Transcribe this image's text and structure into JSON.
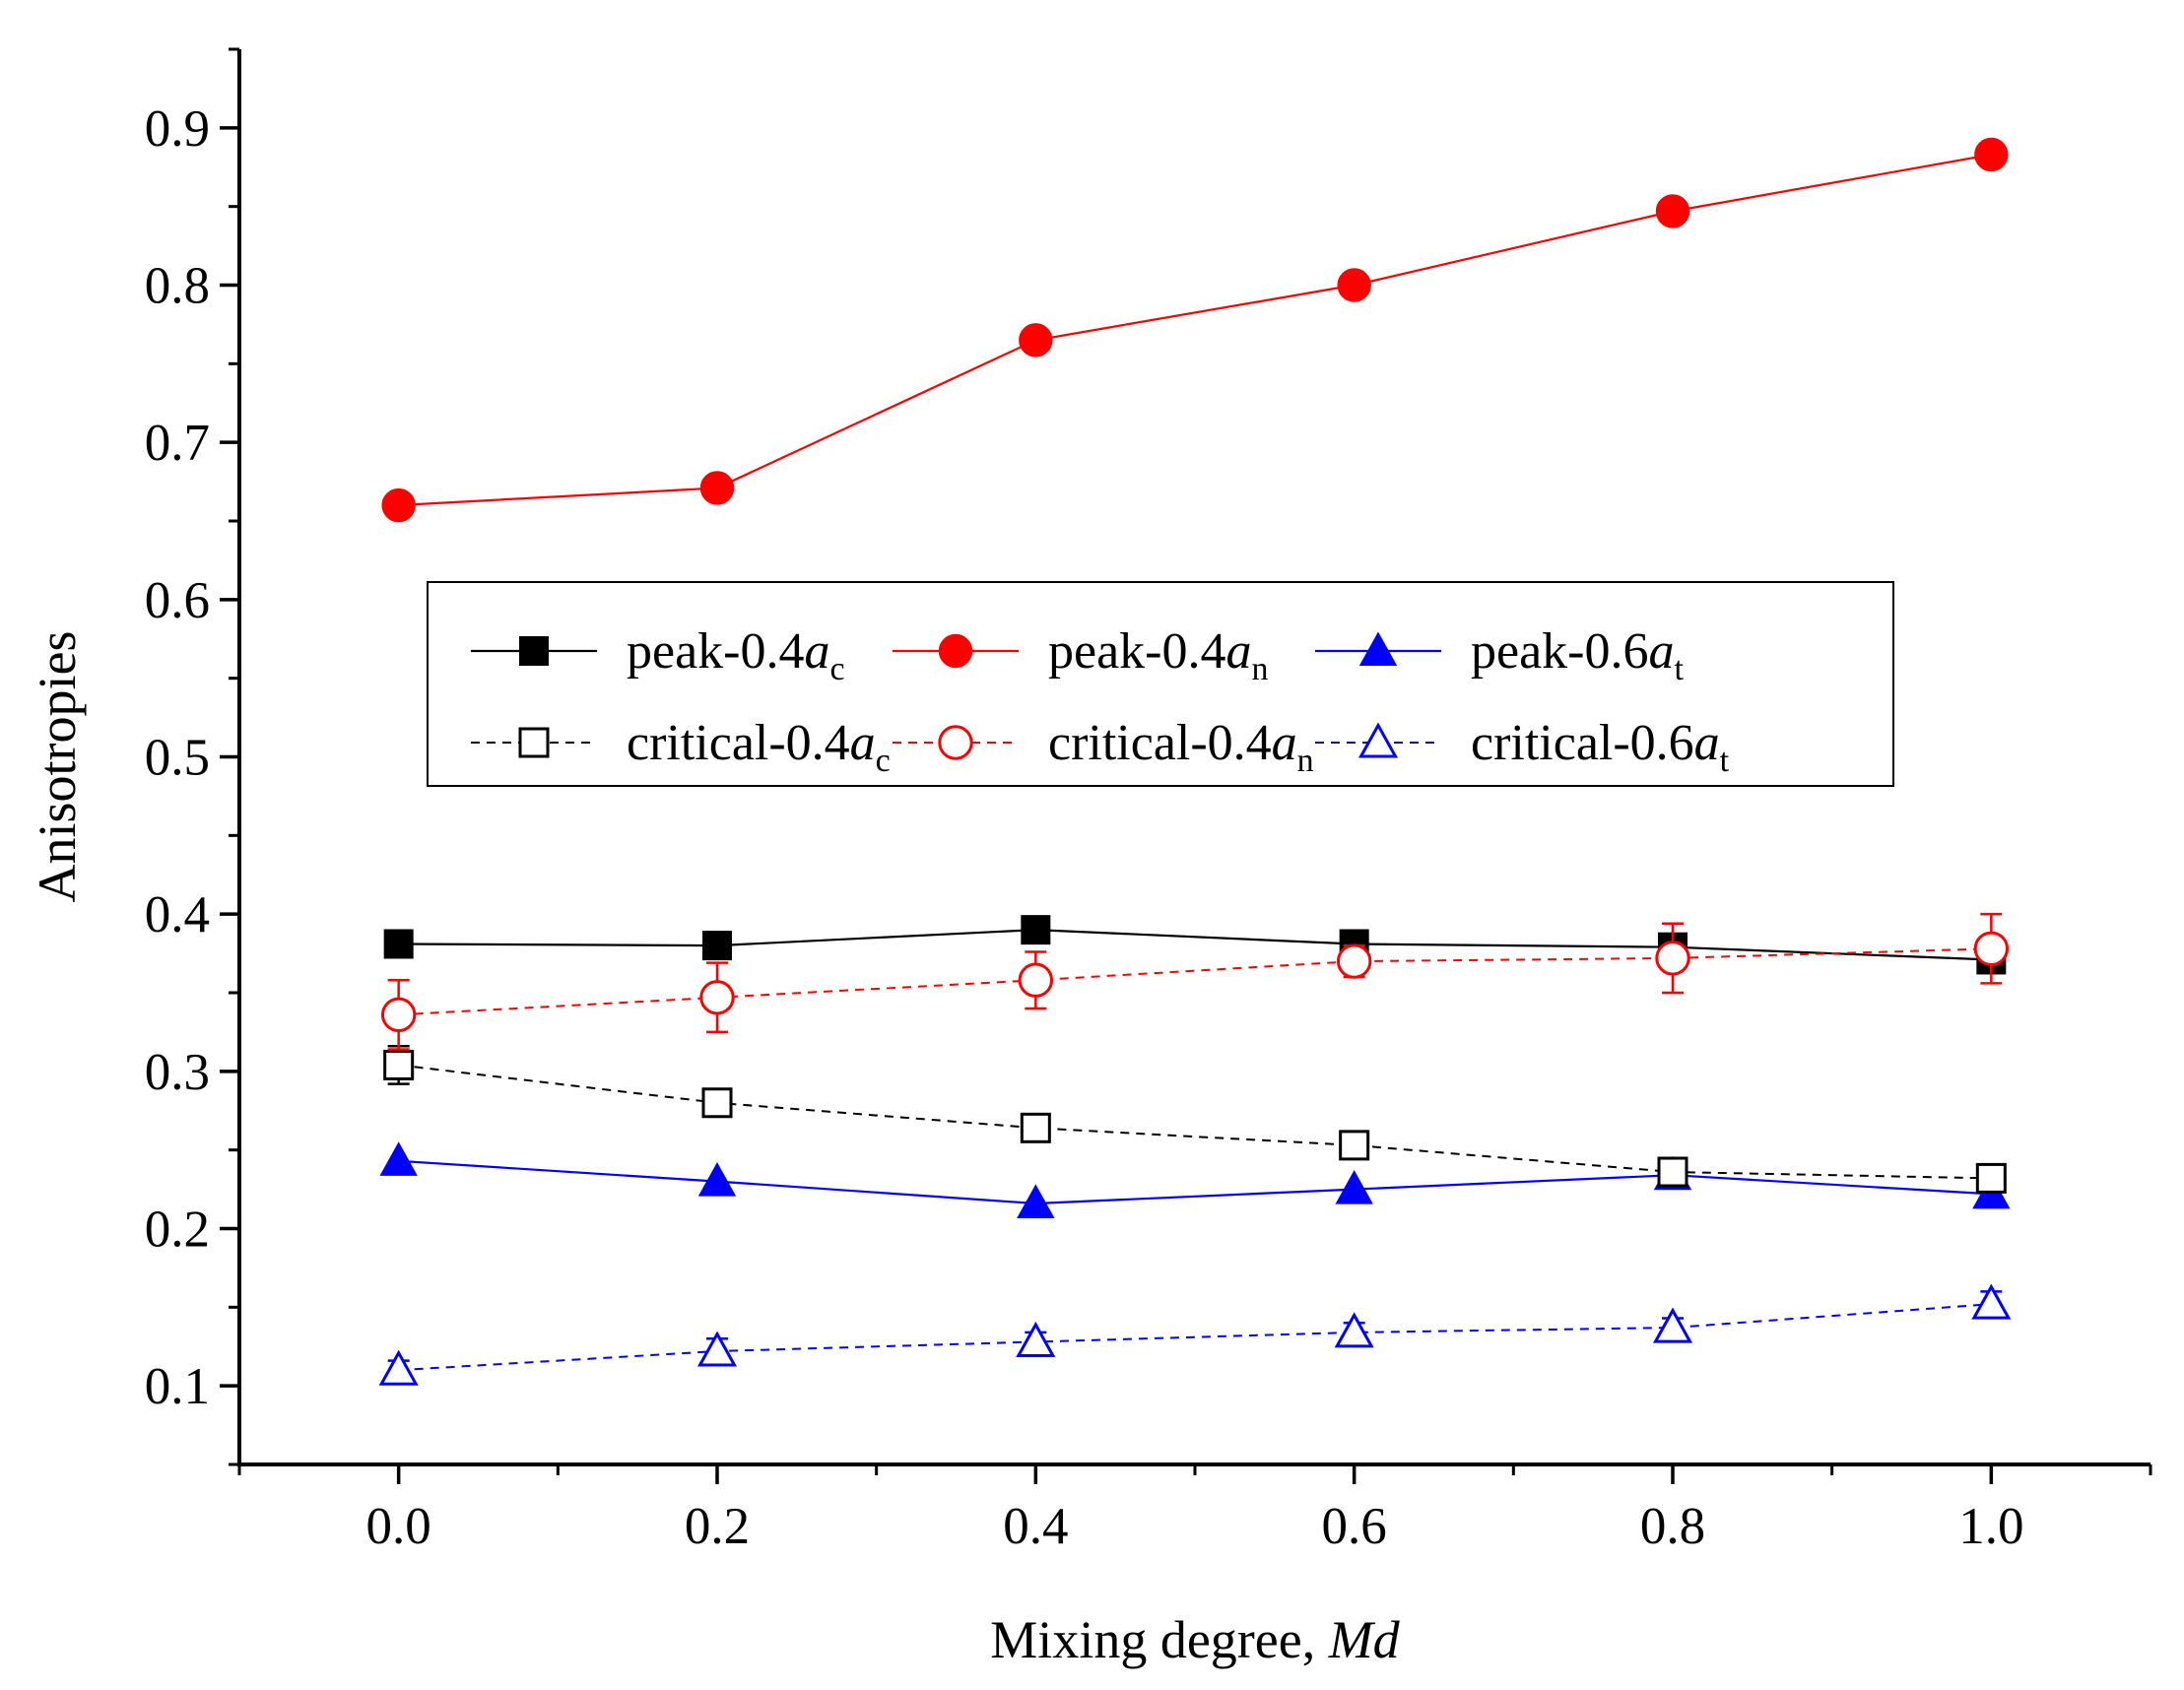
{
  "chart_data": {
    "type": "line",
    "xlabel": "Mixing degree, ",
    "xlabel_italic": "Md",
    "ylabel": "Anisotropies",
    "xlim": [
      -0.1,
      1.1
    ],
    "ylim": [
      0.05,
      0.95
    ],
    "xticks": [
      0.0,
      0.2,
      0.4,
      0.6,
      0.8,
      1.0
    ],
    "xtick_labels": [
      "0.0",
      "0.2",
      "0.4",
      "0.6",
      "0.8",
      "1.0"
    ],
    "yticks": [
      0.1,
      0.2,
      0.3,
      0.4,
      0.5,
      0.6,
      0.7,
      0.8,
      0.9
    ],
    "ytick_labels": [
      "0.1",
      "0.2",
      "0.3",
      "0.4",
      "0.5",
      "0.6",
      "0.7",
      "0.8",
      "0.9"
    ],
    "x": [
      0.0,
      0.2,
      0.4,
      0.6,
      0.8,
      1.0
    ],
    "series": [
      {
        "name": "peak-0.4ac",
        "prefix": "peak-0.4",
        "var": "a",
        "sub": "c",
        "color": "#000000",
        "marker": "square",
        "filled": true,
        "dashed": false,
        "values": [
          0.381,
          0.38,
          0.39,
          0.381,
          0.379,
          0.371
        ],
        "errors": [
          0.005,
          0.005,
          0.005,
          0.005,
          0.005,
          0.005
        ]
      },
      {
        "name": "peak-0.4an",
        "prefix": "peak-0.4",
        "var": "a",
        "sub": "n",
        "color": "#ff0000",
        "marker": "circle",
        "filled": true,
        "dashed": false,
        "values": [
          0.66,
          0.671,
          0.765,
          0.8,
          0.847,
          0.883
        ],
        "errors": [
          0,
          0,
          0,
          0,
          0,
          0
        ]
      },
      {
        "name": "peak-0.6at",
        "prefix": "peak-0.6",
        "var": "a",
        "sub": "t",
        "color": "#0000ff",
        "marker": "triangle",
        "filled": true,
        "dashed": false,
        "values": [
          0.243,
          0.23,
          0.216,
          0.225,
          0.234,
          0.222
        ],
        "errors": [
          0,
          0,
          0,
          0,
          0,
          0
        ]
      },
      {
        "name": "critical-0.4ac",
        "prefix": "critical-0.4",
        "var": "a",
        "sub": "c",
        "color": "#000000",
        "marker": "square",
        "filled": false,
        "dashed": true,
        "values": [
          0.304,
          0.28,
          0.264,
          0.253,
          0.236,
          0.232
        ],
        "errors": [
          0.012,
          0.008,
          0.006,
          0.006,
          0.006,
          0.006
        ]
      },
      {
        "name": "critical-0.4an",
        "prefix": "critical-0.4",
        "var": "a",
        "sub": "n",
        "color": "#ff0000",
        "marker": "circle",
        "filled": false,
        "dashed": true,
        "values": [
          0.336,
          0.347,
          0.358,
          0.37,
          0.372,
          0.378
        ],
        "errors": [
          0.022,
          0.022,
          0.018,
          0.01,
          0.022,
          0.022
        ]
      },
      {
        "name": "critical-0.6at",
        "prefix": "critical-0.6",
        "var": "a",
        "sub": "t",
        "color": "#0000ff",
        "marker": "triangle",
        "filled": false,
        "dashed": true,
        "values": [
          0.11,
          0.122,
          0.128,
          0.134,
          0.137,
          0.152
        ],
        "errors": [
          0.006,
          0.008,
          0.006,
          0.006,
          0.006,
          0.008
        ]
      }
    ],
    "legend_position": "center"
  }
}
